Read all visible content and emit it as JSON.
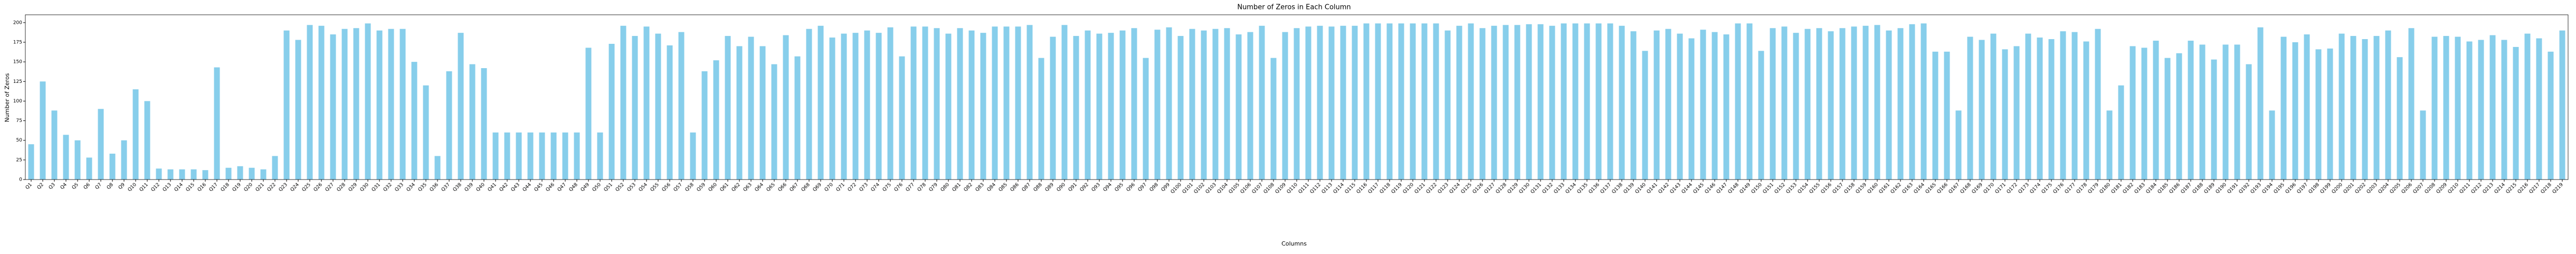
{
  "chart_data": {
    "type": "bar",
    "title": "Number of Zeros in Each Column",
    "xlabel": "Columns",
    "ylabel": "Number of Zeros",
    "color": "#87ceeb",
    "categories": [
      "Q1",
      "Q2",
      "Q3",
      "Q4",
      "Q5",
      "Q6",
      "Q7",
      "Q8",
      "Q9",
      "Q10",
      "Q11",
      "Q12",
      "Q13",
      "Q14",
      "Q15",
      "Q16",
      "Q17",
      "Q18",
      "Q19",
      "Q20",
      "Q21",
      "Q22",
      "Q23",
      "Q24",
      "Q25",
      "Q26",
      "Q27",
      "Q28",
      "Q29",
      "Q30",
      "Q31",
      "Q32",
      "Q33",
      "Q34",
      "Q35",
      "Q36",
      "Q37",
      "Q38",
      "Q39",
      "Q40",
      "Q41",
      "Q42",
      "Q43",
      "Q44",
      "Q45",
      "Q46",
      "Q47",
      "Q48",
      "Q49",
      "Q50",
      "Q51",
      "Q52",
      "Q53",
      "Q54",
      "Q55",
      "Q56",
      "Q57",
      "Q58",
      "Q59",
      "Q60",
      "Q61",
      "Q62",
      "Q63",
      "Q64",
      "Q65",
      "Q66",
      "Q67",
      "Q68",
      "Q69",
      "Q70",
      "Q71",
      "Q72",
      "Q73",
      "Q74",
      "Q75",
      "Q76",
      "Q77",
      "Q78",
      "Q79",
      "Q80",
      "Q81",
      "Q82",
      "Q83",
      "Q84",
      "Q85",
      "Q86",
      "Q87",
      "Q88",
      "Q89",
      "Q90",
      "Q91",
      "Q92",
      "Q93",
      "Q94",
      "Q95",
      "Q96",
      "Q97",
      "Q98",
      "Q99",
      "Q100",
      "Q101",
      "Q102",
      "Q103",
      "Q104",
      "Q105",
      "Q106",
      "Q107",
      "Q108",
      "Q109",
      "Q110",
      "Q111",
      "Q112",
      "Q113",
      "Q114",
      "Q115",
      "Q116",
      "Q117",
      "Q118",
      "Q119",
      "Q120",
      "Q121",
      "Q122",
      "Q123",
      "Q124",
      "Q125",
      "Q126",
      "Q127",
      "Q128",
      "Q129",
      "Q130",
      "Q131",
      "Q132",
      "Q133",
      "Q134",
      "Q135",
      "Q136",
      "Q137",
      "Q138",
      "Q139",
      "Q140",
      "Q141",
      "Q142",
      "Q143",
      "Q144",
      "Q145",
      "Q146",
      "Q147",
      "Q148",
      "Q149",
      "Q150",
      "Q151",
      "Q152",
      "Q153",
      "Q154",
      "Q155",
      "Q156",
      "Q157",
      "Q158",
      "Q159",
      "Q160",
      "Q161",
      "Q162",
      "Q163",
      "Q164",
      "Q165",
      "Q166",
      "Q167",
      "Q168",
      "Q169",
      "Q170",
      "Q171",
      "Q172",
      "Q173",
      "Q174",
      "Q175",
      "Q176",
      "Q177",
      "Q178",
      "Q179",
      "Q180",
      "Q181",
      "Q182",
      "Q183",
      "Q184",
      "Q185",
      "Q186",
      "Q187",
      "Q188",
      "Q189",
      "Q190",
      "Q191",
      "Q192",
      "Q193",
      "Q194",
      "Q195",
      "Q196",
      "Q197",
      "Q198",
      "Q199",
      "Q200",
      "Q201",
      "Q202",
      "Q203",
      "Q204",
      "Q205",
      "Q206",
      "Q207",
      "Q208",
      "Q209",
      "Q210",
      "Q211",
      "Q212",
      "Q213",
      "Q214",
      "Q215",
      "Q216",
      "Q217",
      "Q218",
      "Q219"
    ],
    "values": [
      45,
      125,
      88,
      57,
      50,
      28,
      90,
      33,
      50,
      115,
      100,
      14,
      13,
      13,
      13,
      12,
      143,
      15,
      17,
      15,
      13,
      30,
      190,
      178,
      197,
      196,
      185,
      192,
      193,
      199,
      190,
      192,
      192,
      150,
      120,
      30,
      138,
      187,
      147,
      142,
      60,
      60,
      60,
      60,
      60,
      60,
      60,
      60,
      168,
      60,
      173,
      196,
      183,
      195,
      186,
      171,
      188,
      60,
      138,
      152,
      183,
      170,
      182,
      170,
      147,
      184,
      157,
      192,
      196,
      181,
      186,
      187,
      190,
      187,
      194,
      157,
      195,
      195,
      193,
      186,
      193,
      190,
      187,
      195,
      195,
      195,
      197,
      155,
      182,
      197,
      183,
      190,
      186,
      187,
      190,
      193,
      155,
      191,
      194,
      183,
      192,
      190,
      192,
      193,
      185,
      188,
      196,
      155,
      188,
      193,
      195,
      196,
      195,
      196,
      196,
      199,
      199,
      199,
      199,
      199,
      199,
      199,
      190,
      196,
      199,
      193,
      196,
      197,
      197,
      198,
      198,
      196,
      199,
      199,
      199,
      199,
      199,
      196,
      189,
      164,
      190,
      192,
      186,
      180,
      191,
      188,
      185,
      199,
      199,
      164,
      193,
      195,
      187,
      192,
      193,
      189,
      193,
      195,
      196,
      197,
      190,
      193,
      198,
      199,
      163,
      163,
      88,
      182,
      178,
      186,
      166,
      170,
      186,
      181,
      179,
      189,
      188,
      176,
      192,
      88,
      120,
      170,
      168,
      177,
      155,
      161,
      177,
      172,
      153,
      172,
      172,
      147,
      194,
      88,
      182,
      175,
      185,
      166,
      167,
      186,
      183,
      179,
      183,
      190,
      156,
      193,
      88,
      182,
      183,
      182,
      176,
      178,
      184,
      178,
      169,
      186,
      180,
      163,
      190
    ],
    "ylim": [
      0,
      210
    ],
    "yticks": [
      0,
      25,
      50,
      75,
      100,
      125,
      150,
      175,
      200
    ]
  }
}
